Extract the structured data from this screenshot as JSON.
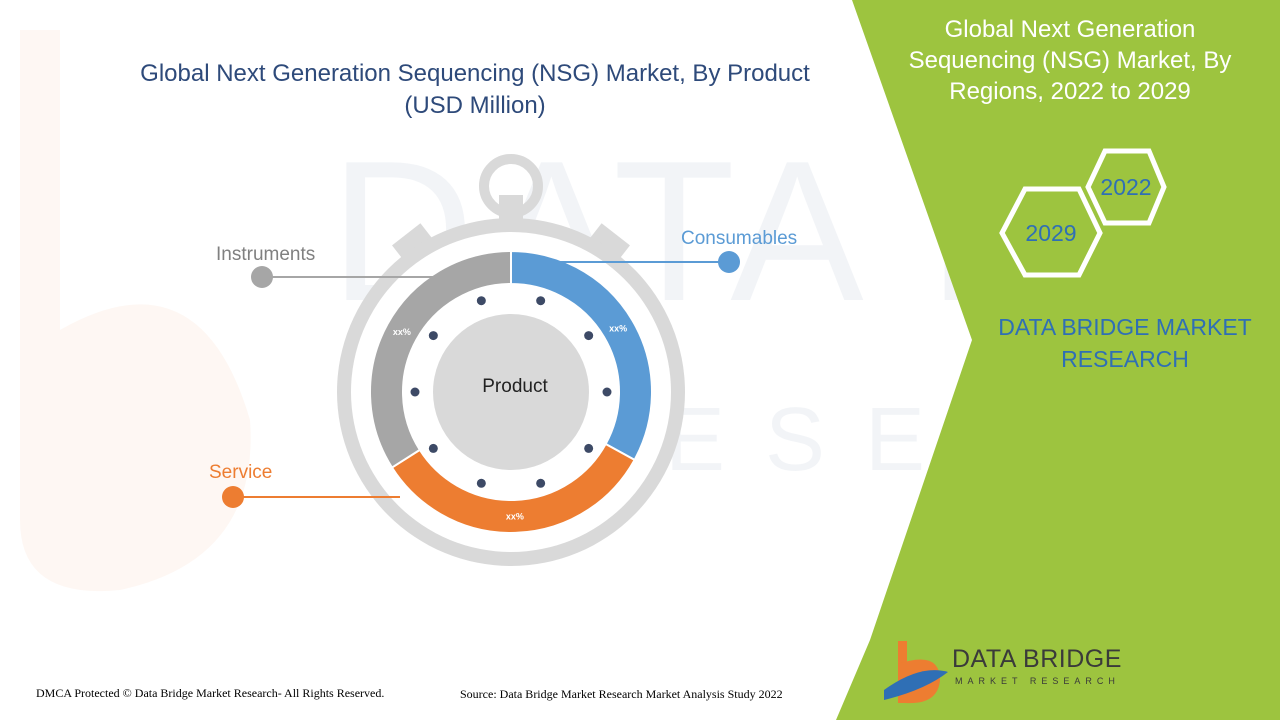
{
  "title": "Global Next Generation Sequencing (NSG) Market, By Product (USD Million)",
  "right_panel": {
    "title": "Global Next Generation Sequencing (NSG) Market, By Regions, 2022 to 2029",
    "year_start": "2022",
    "year_end": "2029",
    "brand_text": "DATA BRIDGE MARKET RESEARCH"
  },
  "chart_data": {
    "type": "pie",
    "center_label": "Product",
    "segments": [
      {
        "name": "Consumables",
        "value_label": "xx%",
        "share": 0.33,
        "color": "#5b9bd5"
      },
      {
        "name": "Service",
        "value_label": "xx%",
        "share": 0.33,
        "color": "#ed7d31"
      },
      {
        "name": "Instruments",
        "value_label": "xx%",
        "share": 0.34,
        "color": "#a6a6a6"
      }
    ]
  },
  "footer": {
    "left": "DMCA Protected © Data Bridge Market Research- All Rights Reserved.",
    "right": "Source: Data Bridge Market Research Market Analysis Study 2022"
  },
  "logo": {
    "name": "DATA BRIDGE",
    "sub": "MARKET RESEARCH"
  },
  "colors": {
    "green_panel": "#9dc43f",
    "title_blue": "#2e4a7a",
    "brand_blue": "#2f6fb5"
  }
}
